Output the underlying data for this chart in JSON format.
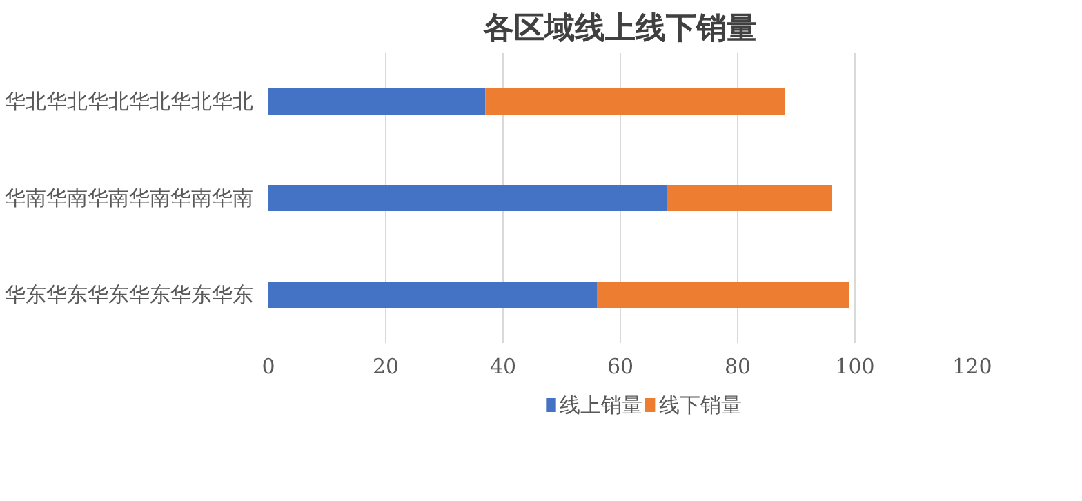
{
  "chart_data": {
    "type": "bar",
    "title": "各区域线上线下销量",
    "orientation": "horizontal",
    "stacked": true,
    "categories": [
      "华北华北华北华北华北华北",
      "华南华南华南华南华南华南",
      "华东华东华东华东华东华东"
    ],
    "series": [
      {
        "name": "线上销量",
        "color": "#4472c4",
        "values": [
          37,
          68,
          56
        ]
      },
      {
        "name": "线下销量",
        "color": "#ed7d31",
        "values": [
          51,
          28,
          43
        ]
      }
    ],
    "xlim": [
      0,
      120
    ],
    "xticks": [
      0,
      20,
      40,
      60,
      80,
      100,
      120
    ],
    "grid": "x",
    "legend": "bottom"
  }
}
